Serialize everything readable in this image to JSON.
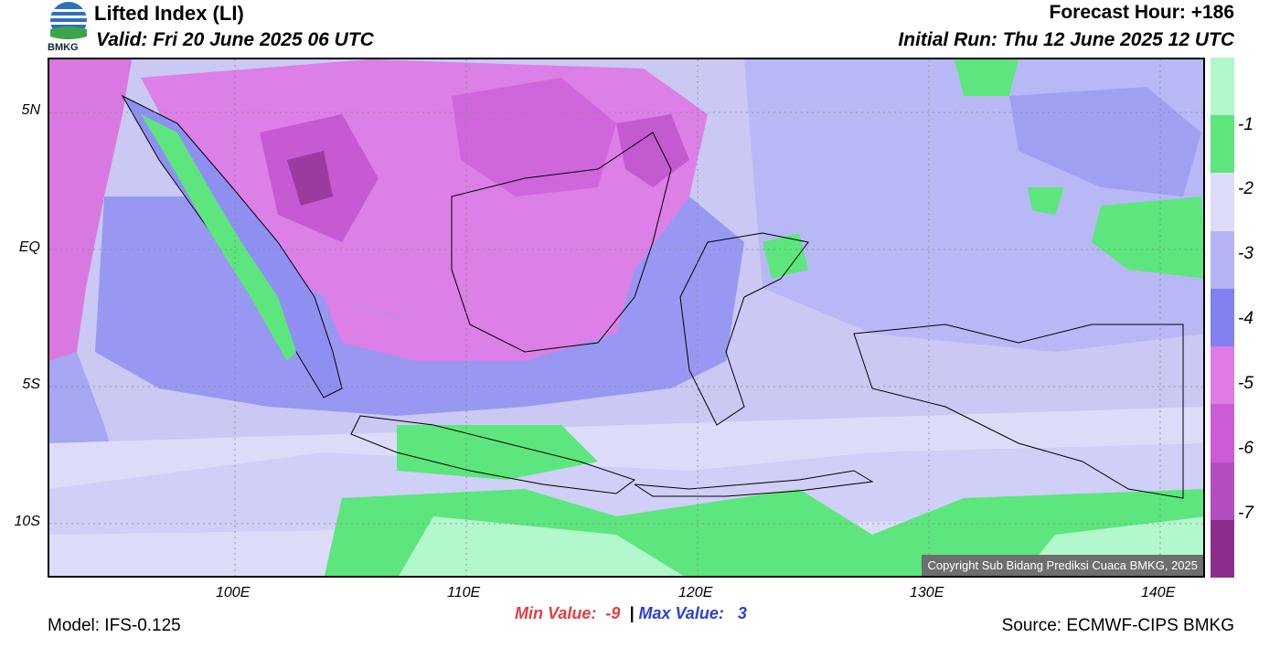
{
  "header": {
    "title": "Lifted Index (LI)",
    "valid": "Valid: Fri 20 June 2025 06 UTC",
    "forecast_hour": "Forecast Hour: +186",
    "initial_run": "Initial Run: Thu 12 June 2025 12 UTC",
    "logo_text": "BMKG"
  },
  "map": {
    "lat_labels": [
      "5N",
      "EQ",
      "5S",
      "10S"
    ],
    "lon_labels": [
      "100E",
      "110E",
      "120E",
      "130E",
      "140E"
    ],
    "copyright": "Copyright Sub Bidang Prediksi Cuaca BMKG, 2025"
  },
  "colorbar": {
    "labels": [
      "-1",
      "-2",
      "-3",
      "-4",
      "-5",
      "-6",
      "-7"
    ],
    "colors": [
      "#b3f7cc",
      "#5ce67d",
      "#dcdcf8",
      "#b4b4f5",
      "#8080f0",
      "#e07be6",
      "#cc5cd6",
      "#b44cc2",
      "#8c2d8c"
    ]
  },
  "footer": {
    "model": "Model: IFS-0.125",
    "min_label": "Min Value:",
    "min_value": "-9",
    "separator": "|",
    "max_label": "Max Value:",
    "max_value": "3",
    "source": "Source: ECMWF-CIPS BMKG"
  }
}
